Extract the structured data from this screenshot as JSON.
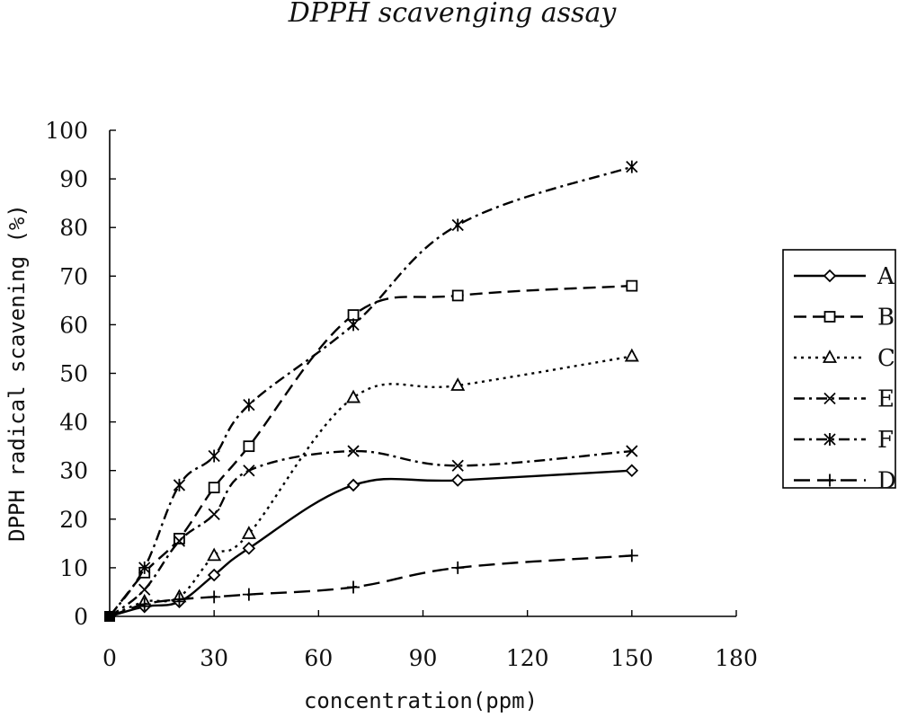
{
  "chart_data": {
    "type": "line",
    "title": "DPPH scavenging assay",
    "xlabel": "concentration(ppm)",
    "ylabel": "DPPH radical scavening (%)",
    "xlim": [
      0,
      180
    ],
    "ylim": [
      0,
      100
    ],
    "x_ticks": [
      "0",
      "30",
      "60",
      "90",
      "120",
      "150",
      "180"
    ],
    "y_ticks": [
      "0",
      "10",
      "20",
      "30",
      "40",
      "50",
      "60",
      "70",
      "80",
      "90",
      "100"
    ],
    "grid": false,
    "legend_position": "right",
    "x": [
      0,
      10,
      20,
      30,
      40,
      70,
      100,
      150
    ],
    "series": [
      {
        "name": "A",
        "marker": "diamond",
        "dash": "solid",
        "values": [
          0,
          2,
          3,
          8.5,
          14,
          27,
          28,
          30
        ]
      },
      {
        "name": "B",
        "marker": "square",
        "dash": "dashed",
        "values": [
          0,
          9,
          16,
          26.5,
          35,
          62,
          66,
          68
        ]
      },
      {
        "name": "C",
        "marker": "triangle",
        "dash": "dotted",
        "values": [
          0,
          3,
          4,
          12.5,
          17,
          45,
          47.5,
          53.5
        ]
      },
      {
        "name": "E",
        "marker": "x",
        "dash": "dashdot",
        "values": [
          0,
          5.5,
          15.5,
          21,
          30,
          34,
          31,
          34
        ]
      },
      {
        "name": "F",
        "marker": "asterisk",
        "dash": "dashdot",
        "values": [
          0,
          10,
          27,
          33,
          43.5,
          60,
          80.5,
          92.5
        ]
      },
      {
        "name": "D",
        "marker": "plus",
        "dash": "longdash",
        "values": [
          0,
          2.5,
          3.5,
          4,
          4.5,
          6,
          10,
          12.5
        ]
      }
    ]
  }
}
